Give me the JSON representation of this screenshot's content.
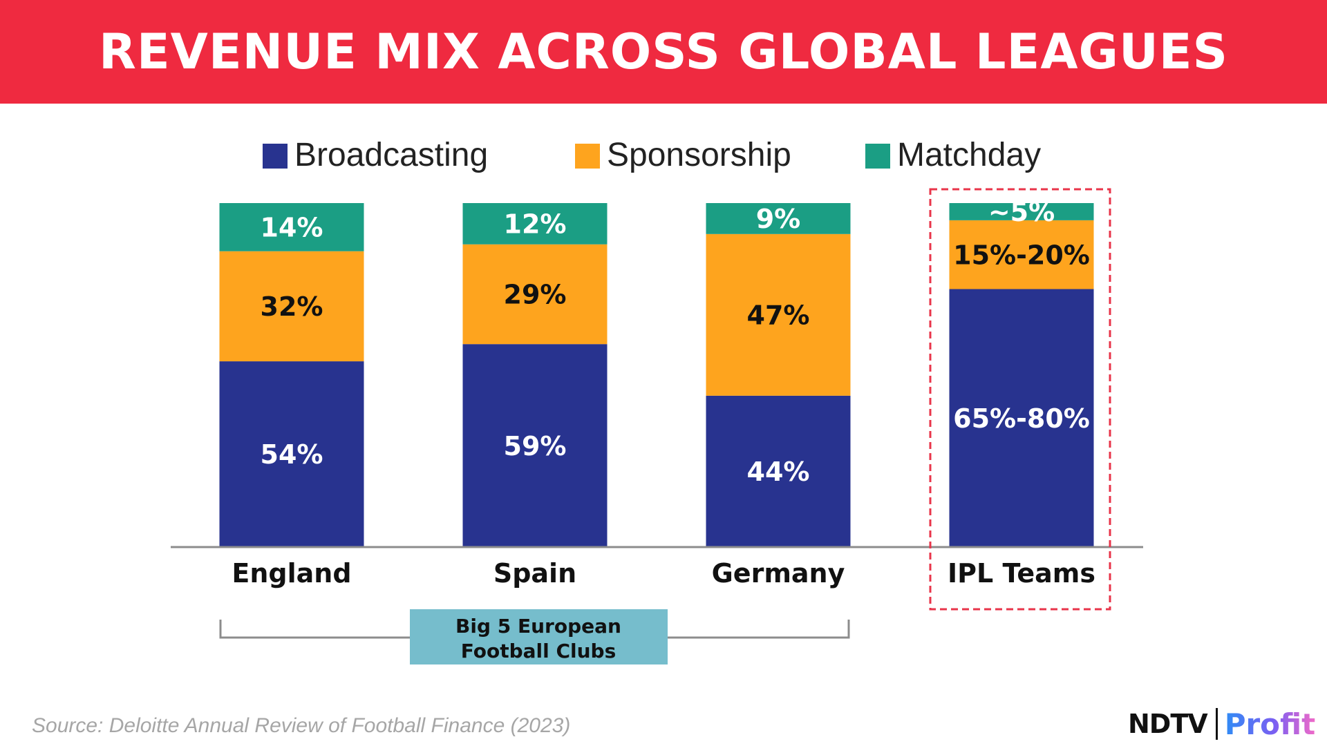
{
  "header": {
    "title": "REVENUE MIX ACROSS GLOBAL LEAGUES"
  },
  "colors": {
    "header_bg": "#ef2a40",
    "broadcasting": "#28338f",
    "sponsorship": "#fea41e",
    "matchday": "#1b9e84",
    "highlight": "#e8344a",
    "group_box": "#76bdcc"
  },
  "chart_data": {
    "type": "bar",
    "stacked": true,
    "categories": [
      "England",
      "Spain",
      "Germany",
      "IPL Teams"
    ],
    "series": [
      {
        "name": "Broadcasting",
        "values": [
          54,
          59,
          44,
          75
        ],
        "labels": [
          "54%",
          "59%",
          "44%",
          "65%-80%"
        ]
      },
      {
        "name": "Sponsorship",
        "values": [
          32,
          29,
          47,
          20
        ],
        "labels": [
          "32%",
          "29%",
          "47%",
          "15%-20%"
        ]
      },
      {
        "name": "Matchday",
        "values": [
          14,
          12,
          9,
          5
        ],
        "labels": [
          "14%",
          "12%",
          "9%",
          "~5%"
        ]
      }
    ],
    "ylim": [
      0,
      100
    ],
    "legend_position": "top",
    "highlighted_category": "IPL Teams",
    "group_label": "Big 5 European Football Clubs",
    "group_label_lines": [
      "Big 5 European",
      "Football Clubs"
    ],
    "group_categories": [
      "England",
      "Spain",
      "Germany"
    ],
    "title": "REVENUE MIX ACROSS GLOBAL LEAGUES",
    "xlabel": "",
    "ylabel": ""
  },
  "footer": {
    "source": "Source: Deloitte Annual Review of Football Finance (2023)",
    "logo_main": "NDTV",
    "logo_sub": "Profit"
  }
}
